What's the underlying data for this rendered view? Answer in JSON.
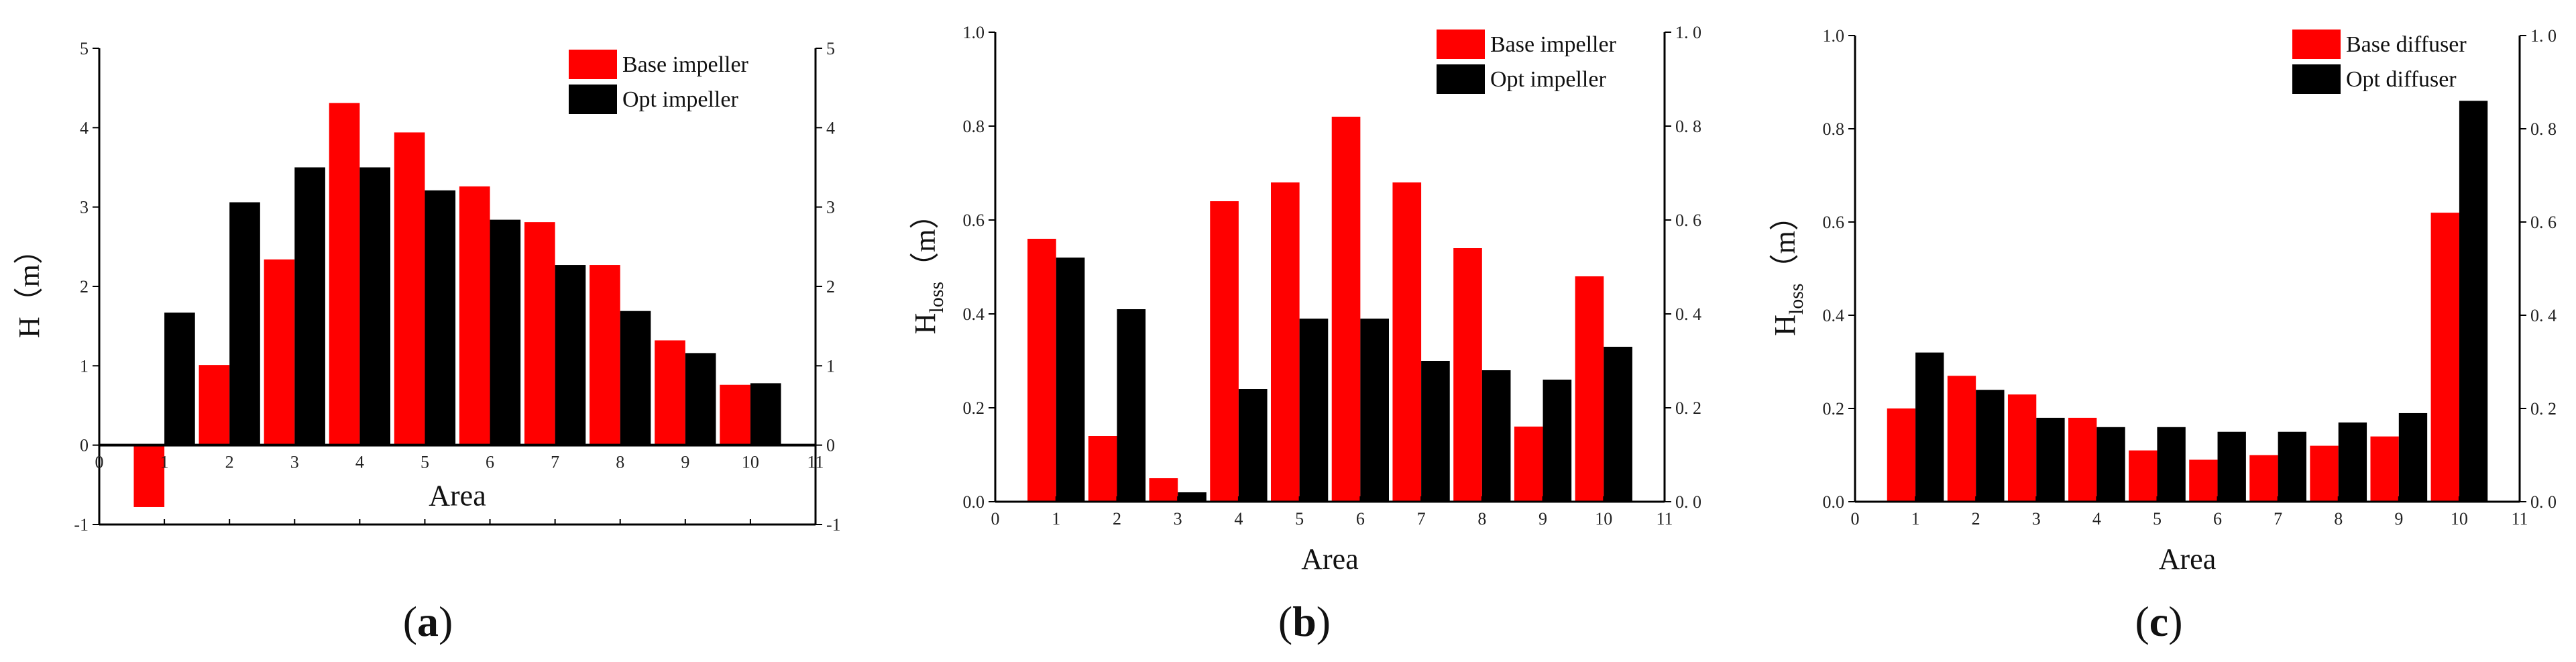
{
  "figure": {
    "captions": [
      {
        "open": "(",
        "letter": "a",
        "close": ")"
      },
      {
        "open": "(",
        "letter": "b",
        "close": ")"
      },
      {
        "open": "(",
        "letter": "c",
        "close": ")"
      }
    ]
  },
  "chart_data": [
    {
      "type": "bar",
      "title": "",
      "xlabel": "Area",
      "ylabel": "H（m）",
      "ylabel_main": "H",
      "ylabel_sub": "",
      "ylabel_unit": "（m）",
      "categories": [
        1,
        2,
        3,
        4,
        5,
        6,
        7,
        8,
        9,
        10
      ],
      "xlim": [
        0,
        11
      ],
      "x_ticks": [
        "0",
        "1",
        "2",
        "3",
        "4",
        "5",
        "6",
        "7",
        "8",
        "9",
        "10",
        "11"
      ],
      "ylim": [
        -1,
        5
      ],
      "y_ticks": [
        "-1",
        "0",
        "1",
        "2",
        "3",
        "4",
        "5"
      ],
      "y_ticks_left": [
        "-1",
        "0",
        "1",
        "2",
        "3",
        "4",
        "5"
      ],
      "y_ticks_right": [
        "-1",
        "0",
        "1",
        "2",
        "3",
        "4",
        "5"
      ],
      "zero_line": true,
      "legend_position": "top-right",
      "series": [
        {
          "name": "Base impeller",
          "color": "#ff0000",
          "values": [
            -0.78,
            1.01,
            2.34,
            4.31,
            3.94,
            3.26,
            2.81,
            2.27,
            1.32,
            0.76
          ]
        },
        {
          "name": "Opt impeller",
          "color": "#000000",
          "values": [
            1.67,
            3.06,
            3.5,
            3.5,
            3.21,
            2.84,
            2.27,
            1.69,
            1.16,
            0.78
          ]
        }
      ]
    },
    {
      "type": "bar",
      "title": "",
      "xlabel": "Area",
      "ylabel": "Hloss（m）",
      "ylabel_main": "H",
      "ylabel_sub": "loss",
      "ylabel_unit": "（m）",
      "categories": [
        1,
        2,
        3,
        4,
        5,
        6,
        7,
        8,
        9,
        10
      ],
      "xlim": [
        0,
        11
      ],
      "x_ticks": [
        "0",
        "1",
        "2",
        "3",
        "4",
        "5",
        "6",
        "7",
        "8",
        "9",
        "10",
        "11"
      ],
      "ylim": [
        0,
        1
      ],
      "y_ticks": [
        "0.0",
        "0.2",
        "0.4",
        "0.6",
        "0.8",
        "1.0"
      ],
      "y_ticks_left": [
        "0.0",
        "0.2",
        "0.4",
        "0.6",
        "0.8",
        "1.0"
      ],
      "y_ticks_right": [
        "0. 0",
        "0. 2",
        "0. 4",
        "0. 6",
        "0. 8",
        "1. 0"
      ],
      "zero_line": false,
      "legend_position": "top-right",
      "series": [
        {
          "name": "Base impeller",
          "color": "#ff0000",
          "values": [
            0.56,
            0.14,
            0.05,
            0.64,
            0.68,
            0.82,
            0.68,
            0.54,
            0.16,
            0.48
          ]
        },
        {
          "name": "Opt impeller",
          "color": "#000000",
          "values": [
            0.52,
            0.41,
            0.02,
            0.24,
            0.39,
            0.39,
            0.3,
            0.28,
            0.26,
            0.33
          ]
        }
      ]
    },
    {
      "type": "bar",
      "title": "",
      "xlabel": "Area",
      "ylabel": "Hloss（m）",
      "ylabel_main": "H",
      "ylabel_sub": "loss",
      "ylabel_unit": "（m）",
      "categories": [
        1,
        2,
        3,
        4,
        5,
        6,
        7,
        8,
        9,
        10
      ],
      "xlim": [
        0,
        11
      ],
      "x_ticks": [
        "0",
        "1",
        "2",
        "3",
        "4",
        "5",
        "6",
        "7",
        "8",
        "9",
        "10",
        "11"
      ],
      "ylim": [
        0,
        1
      ],
      "y_ticks": [
        "0.0",
        "0.2",
        "0.4",
        "0.6",
        "0.8",
        "1.0"
      ],
      "y_ticks_left": [
        "0.0",
        "0.2",
        "0.4",
        "0.6",
        "0.8",
        "1.0"
      ],
      "y_ticks_right": [
        "0. 0",
        "0. 2",
        "0. 4",
        "0. 6",
        "0. 8",
        "1. 0"
      ],
      "zero_line": false,
      "legend_position": "top-right",
      "series": [
        {
          "name": "Base diffuser",
          "color": "#ff0000",
          "values": [
            0.2,
            0.27,
            0.23,
            0.18,
            0.11,
            0.09,
            0.1,
            0.12,
            0.14,
            0.62
          ]
        },
        {
          "name": "Opt diffuser",
          "color": "#000000",
          "values": [
            0.32,
            0.24,
            0.18,
            0.16,
            0.16,
            0.15,
            0.15,
            0.17,
            0.19,
            0.86
          ]
        }
      ]
    }
  ]
}
